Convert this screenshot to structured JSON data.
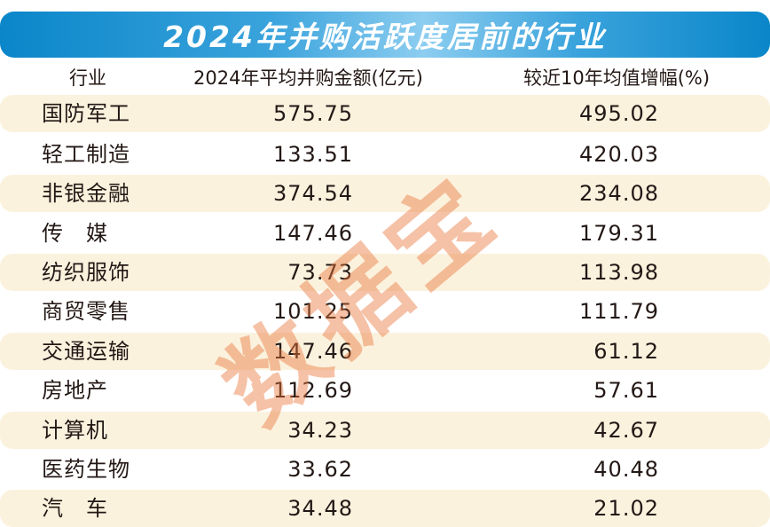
{
  "chart_data": {
    "type": "table",
    "title": "2024年并购活跃度居前的行业",
    "columns": [
      "行业",
      "2024年平均并购金额(亿元)",
      "较近10年均值增幅(%)"
    ],
    "rows": [
      [
        "国防军工",
        "575.75",
        "495.02"
      ],
      [
        "轻工制造",
        "133.51",
        "420.03"
      ],
      [
        "非银金融",
        "374.54",
        "234.08"
      ],
      [
        "传　媒",
        "147.46",
        "179.31"
      ],
      [
        "纺织服饰",
        "73.73",
        "113.98"
      ],
      [
        "商贸零售",
        "101.25",
        "111.79"
      ],
      [
        "交通运输",
        "147.46",
        "61.12"
      ],
      [
        "房地产",
        "112.69",
        "57.61"
      ],
      [
        "计算机",
        "34.23",
        "42.67"
      ],
      [
        "医药生物",
        "33.62",
        "40.48"
      ],
      [
        "汽　车",
        "34.48",
        "21.02"
      ]
    ]
  },
  "watermark": "数据宝",
  "colors": {
    "title_bar": "#0a86c9",
    "row_shade": "#fbf2de",
    "watermark": "#e8783c"
  }
}
